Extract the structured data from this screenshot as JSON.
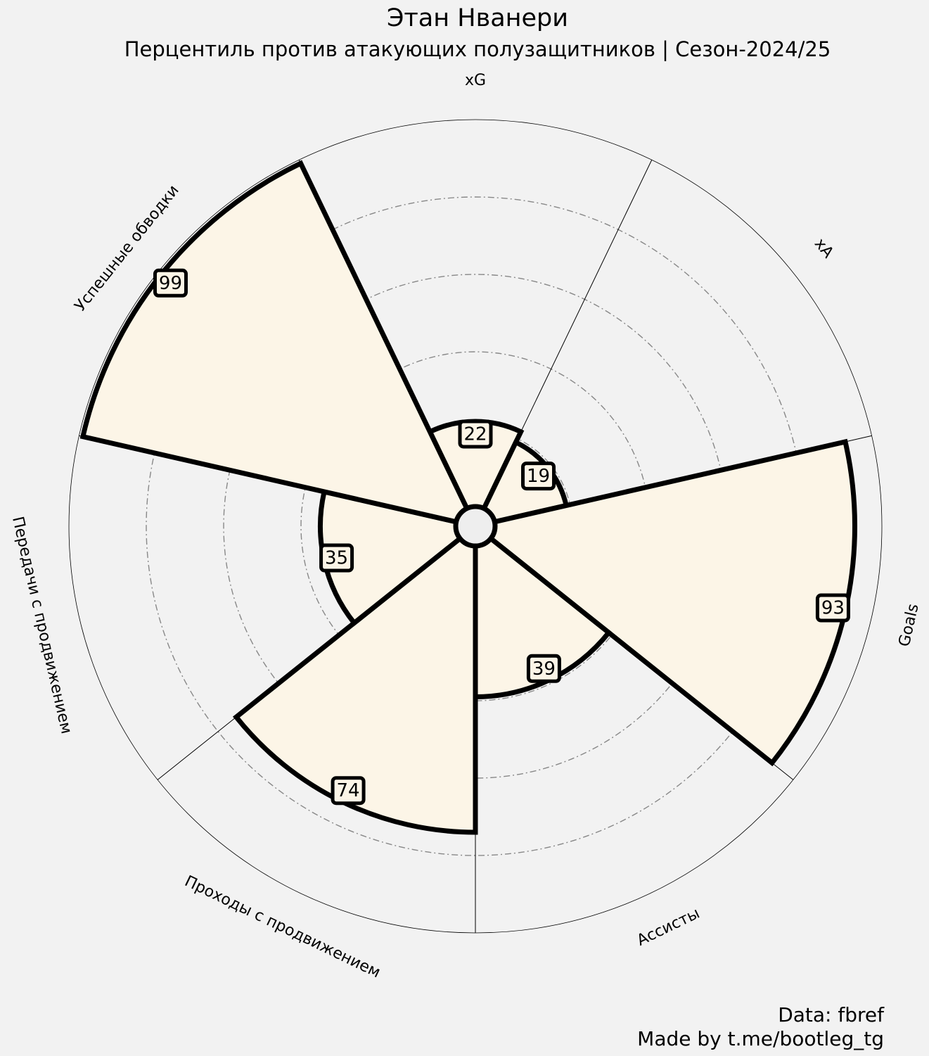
{
  "chart_data": {
    "type": "polar-bar",
    "title": "Этан Нванери",
    "subtitle": "Перцентиль против атакующих полузащитников | Сезон-2024/25",
    "categories": [
      "xG",
      "xA",
      "Goals",
      "Ассисты",
      "Проходы с продвижением",
      "Передачи с продвижением",
      "Успешные обводки"
    ],
    "values": [
      22,
      19,
      93,
      39,
      74,
      35,
      99
    ],
    "rlim": [
      0,
      100
    ],
    "grid": true,
    "colors": {
      "background": "#f2f2f2",
      "bar_fill": "#fcf5e7",
      "bar_edge": "#000000",
      "grid": "#888888"
    }
  },
  "footer": {
    "source": "Data: fbref",
    "credit": "Made by t.me/bootleg_tg"
  }
}
